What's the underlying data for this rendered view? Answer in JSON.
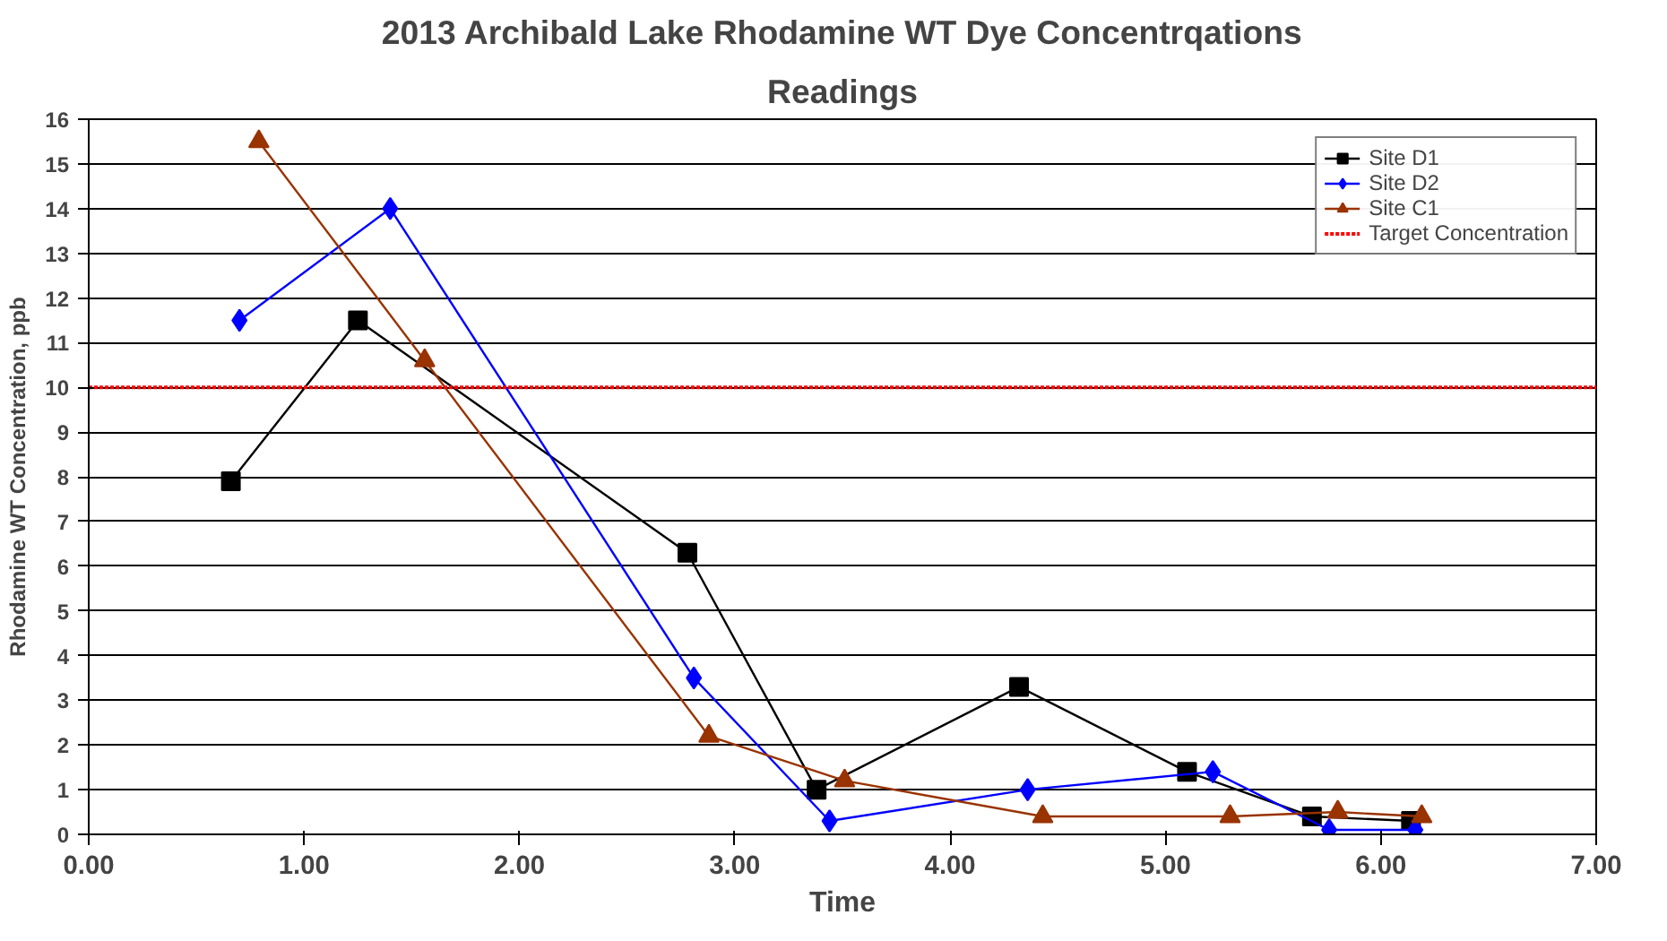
{
  "chart_data": {
    "type": "line",
    "title": "2013 Archibald Lake Rhodamine WT Dye Concentrqations",
    "subtitle": "Readings",
    "xlabel": "Time",
    "ylabel": "Rhodamine WT Concentration, ppb",
    "xlim": [
      0,
      7
    ],
    "xticks": [
      {
        "value": 0,
        "label": "0.00"
      },
      {
        "value": 1,
        "label": "1.00"
      },
      {
        "value": 2,
        "label": "2.00"
      },
      {
        "value": 3,
        "label": "3.00"
      },
      {
        "value": 4,
        "label": "4.00"
      },
      {
        "value": 5,
        "label": "5.00"
      },
      {
        "value": 6,
        "label": "6.00"
      },
      {
        "value": 7,
        "label": "7.00"
      }
    ],
    "ylim": [
      0,
      16
    ],
    "yticks": [
      0,
      1,
      2,
      3,
      4,
      5,
      6,
      7,
      8,
      9,
      10,
      11,
      12,
      13,
      14,
      15,
      16
    ],
    "grid": "y",
    "legend": "top right",
    "series": [
      {
        "name": "Site D1",
        "color": "#000000",
        "marker": "square",
        "x": [
          0.66,
          1.25,
          2.78,
          3.38,
          4.32,
          5.1,
          5.68,
          6.14
        ],
        "values": [
          7.9,
          11.5,
          6.3,
          1.0,
          3.3,
          1.4,
          0.4,
          0.3
        ]
      },
      {
        "name": "Site D2",
        "color": "#0000ff",
        "marker": "diamond",
        "x": [
          0.7,
          1.4,
          2.81,
          3.44,
          4.36,
          5.22,
          5.76,
          6.16
        ],
        "values": [
          11.5,
          14.0,
          3.5,
          0.3,
          1.0,
          1.4,
          0.1,
          0.1
        ]
      },
      {
        "name": "Site C1",
        "color": "#993300",
        "marker": "triangle",
        "x": [
          0.79,
          1.56,
          2.88,
          3.51,
          4.43,
          5.3,
          5.8,
          6.19
        ],
        "values": [
          15.5,
          10.6,
          2.2,
          1.2,
          0.4,
          0.4,
          0.5,
          0.4
        ]
      }
    ],
    "ref_lines": [
      {
        "axis": "y",
        "value": 10,
        "label": "Target Concentration",
        "color": "#ff0000",
        "line_style": "dotted"
      }
    ]
  }
}
